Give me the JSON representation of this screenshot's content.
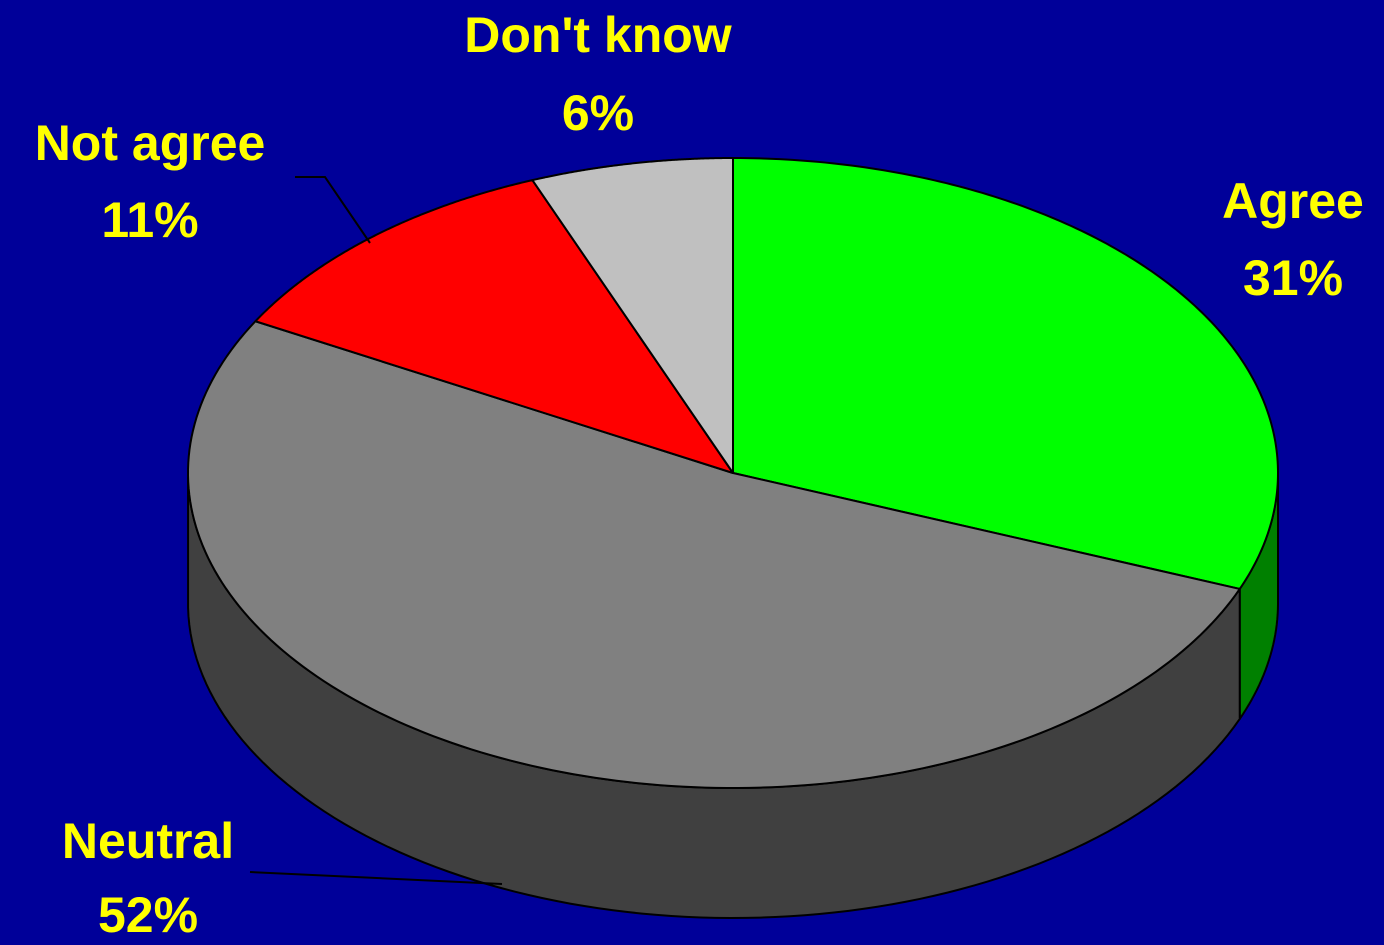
{
  "colors": {
    "background": "#000099",
    "label": "#FFFF00",
    "outline": "#000000"
  },
  "chart_data": {
    "type": "pie",
    "style": "3d",
    "title": "",
    "slices": [
      {
        "category": "Agree",
        "value": 31,
        "value_label": "31%",
        "color": "#00FF00",
        "side_color": "#008000"
      },
      {
        "category": "Neutral",
        "value": 52,
        "value_label": "52%",
        "color": "#808080",
        "side_color": "#404040"
      },
      {
        "category": "Not agree",
        "value": 11,
        "value_label": "11%",
        "color": "#FF0000",
        "side_color": "#800000"
      },
      {
        "category": "Don't know",
        "value": 6,
        "value_label": "6%",
        "color": "#C0C0C0",
        "side_color": "#606060"
      }
    ]
  }
}
